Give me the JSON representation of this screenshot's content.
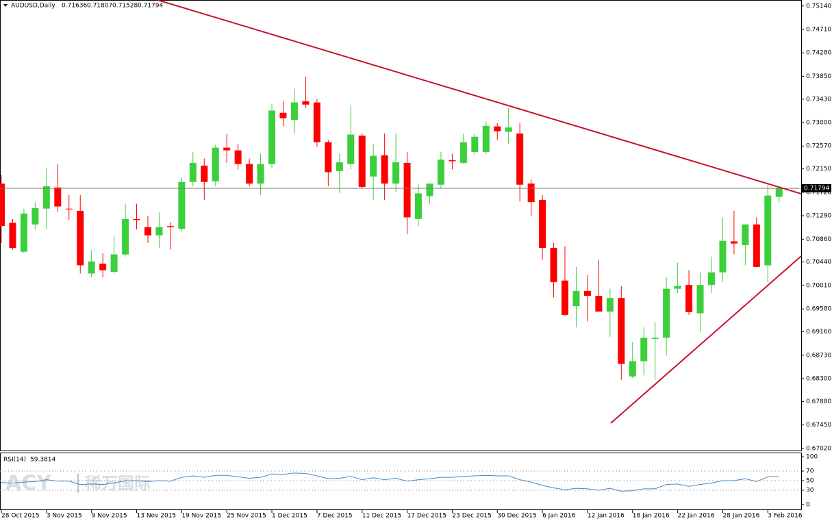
{
  "chart_data": [
    {
      "type": "candlestick",
      "title": "AUDUSD,Daily",
      "categories": [
        "28 Oct 2015",
        null,
        null,
        null,
        "3 Nov 2015",
        null,
        null,
        null,
        "9 Nov 2015",
        null,
        null,
        null,
        "13 Nov 2015",
        null,
        null,
        null,
        "19 Nov 2015",
        null,
        null,
        null,
        "25 Nov 2015",
        null,
        null,
        null,
        "1 Dec 2015",
        null,
        null,
        null,
        "7 Dec 2015",
        null,
        null,
        null,
        "11 Dec 2015",
        null,
        null,
        null,
        "17 Dec 2015",
        null,
        null,
        null,
        "23 Dec 2015",
        null,
        null,
        null,
        "30 Dec 2015",
        null,
        null,
        null,
        "6 Jan 2016",
        null,
        null,
        null,
        "12 Jan 2016",
        null,
        null,
        null,
        "18 Jan 2016",
        null,
        null,
        null,
        "22 Jan 2016",
        null,
        null,
        null,
        "28 Jan 2016",
        null,
        null,
        null,
        "3 Feb 2016",
        null
      ],
      "open": [
        0.7188,
        0.7116,
        0.7063,
        0.7113,
        0.7142,
        0.7181,
        0.7142,
        0.7138,
        0.7023,
        0.7041,
        0.7026,
        0.7058,
        0.7123,
        0.7108,
        0.7093,
        0.711,
        0.7105,
        0.7191,
        0.7221,
        0.7192,
        0.7254,
        0.7249,
        0.7224,
        0.7188,
        0.7224,
        0.7318,
        0.7305,
        0.7339,
        0.7337,
        0.7264,
        0.7211,
        0.7224,
        0.7276,
        0.7201,
        0.724,
        0.7188,
        0.7226,
        0.7123,
        0.7165,
        0.7186,
        0.7231,
        0.7226,
        0.7246,
        0.7246,
        0.7293,
        0.7283,
        0.728,
        0.7188,
        0.7158,
        0.707,
        0.701,
        0.6963,
        0.6991,
        0.6982,
        0.6953,
        0.6978,
        0.6834,
        0.6862,
        0.6903,
        0.6905,
        0.6995,
        0.7002,
        0.695,
        0.7002,
        0.7025,
        0.7082,
        0.7075,
        0.7113,
        0.7038,
        0.71636
      ],
      "high": [
        0.7204,
        0.7123,
        0.7142,
        0.7154,
        0.7217,
        0.7224,
        0.7167,
        0.7167,
        0.7066,
        0.706,
        0.7092,
        0.7151,
        0.7151,
        0.7129,
        0.7135,
        0.7117,
        0.7199,
        0.7246,
        0.7234,
        0.7259,
        0.7279,
        0.7261,
        0.7234,
        0.7243,
        0.7334,
        0.7339,
        0.7362,
        0.7384,
        0.7343,
        0.7268,
        0.7243,
        0.7333,
        0.728,
        0.7261,
        0.728,
        0.728,
        0.7246,
        0.7188,
        0.7188,
        0.7246,
        0.7243,
        0.728,
        0.728,
        0.7302,
        0.7299,
        0.7327,
        0.7299,
        0.7196,
        0.7167,
        0.7079,
        0.7073,
        0.7035,
        0.702,
        0.7048,
        0.6995,
        0.7,
        0.6897,
        0.6924,
        0.6934,
        0.7016,
        0.7043,
        0.7029,
        0.7026,
        0.7054,
        0.7126,
        0.7138,
        0.7113,
        0.7126,
        0.7186,
        0.71807
      ],
      "low": [
        0.7079,
        0.7067,
        0.706,
        0.7104,
        0.7104,
        0.7136,
        0.7121,
        0.7023,
        0.7016,
        0.7016,
        0.7023,
        0.7054,
        0.7104,
        0.7079,
        0.707,
        0.7067,
        0.71,
        0.7183,
        0.7158,
        0.7183,
        0.7226,
        0.7214,
        0.7183,
        0.7167,
        0.7217,
        0.7293,
        0.728,
        0.7327,
        0.7255,
        0.7183,
        0.7171,
        0.7214,
        0.718,
        0.7158,
        0.7158,
        0.7173,
        0.7095,
        0.711,
        0.7151,
        0.718,
        0.7214,
        0.7224,
        0.7241,
        0.7242,
        0.7268,
        0.7261,
        0.7155,
        0.7129,
        0.7048,
        0.6979,
        0.6945,
        0.6924,
        0.6935,
        0.6953,
        0.6907,
        0.6828,
        0.6831,
        0.6836,
        0.6828,
        0.6872,
        0.6987,
        0.6947,
        0.6916,
        0.6987,
        0.7007,
        0.7058,
        0.7038,
        0.7035,
        0.7007,
        0.71528
      ],
      "close": [
        0.711,
        0.707,
        0.7133,
        0.7143,
        0.7183,
        0.7146,
        0.7141,
        0.7038,
        0.7045,
        0.7029,
        0.7058,
        0.7123,
        0.7121,
        0.7093,
        0.7108,
        0.7108,
        0.7191,
        0.7226,
        0.7191,
        0.7254,
        0.7249,
        0.7224,
        0.7188,
        0.7224,
        0.7322,
        0.7308,
        0.7337,
        0.7333,
        0.7264,
        0.7209,
        0.7227,
        0.7278,
        0.7182,
        0.7239,
        0.7188,
        0.7227,
        0.7126,
        0.717,
        0.7188,
        0.7232,
        0.7229,
        0.7264,
        0.7274,
        0.7294,
        0.7284,
        0.7291,
        0.7186,
        0.7154,
        0.707,
        0.7007,
        0.6947,
        0.6991,
        0.6982,
        0.6953,
        0.6978,
        0.6857,
        0.6862,
        0.6905,
        0.6905,
        0.6995,
        0.7,
        0.6952,
        0.7002,
        0.7025,
        0.7083,
        0.7078,
        0.7113,
        0.7035,
        0.7166,
        0.71794
      ],
      "up_color": "#3ccf3c",
      "down_color": "#ff0000",
      "ylim": [
        0.6698,
        0.7525
      ],
      "yticks": [
        {
          "value": 0.7514,
          "label": "0.75140"
        },
        {
          "value": 0.7471,
          "label": "0.74710"
        },
        {
          "value": 0.7428,
          "label": "0.74280"
        },
        {
          "value": 0.7385,
          "label": "0.73850"
        },
        {
          "value": 0.7343,
          "label": "0.73430"
        },
        {
          "value": 0.73,
          "label": "0.73000"
        },
        {
          "value": 0.7257,
          "label": "0.72570"
        },
        {
          "value": 0.7215,
          "label": "0.72150"
        },
        {
          "value": 0.7172,
          "label": "0.71720"
        },
        {
          "value": 0.7129,
          "label": "0.71290"
        },
        {
          "value": 0.7086,
          "label": "0.70860"
        },
        {
          "value": 0.7044,
          "label": "0.70440"
        },
        {
          "value": 0.7001,
          "label": "0.70010"
        },
        {
          "value": 0.6958,
          "label": "0.69580"
        },
        {
          "value": 0.6916,
          "label": "0.69160"
        },
        {
          "value": 0.6873,
          "label": "0.68730"
        },
        {
          "value": 0.683,
          "label": "0.68300"
        },
        {
          "value": 0.6788,
          "label": "0.67880"
        },
        {
          "value": 0.6745,
          "label": "0.67450"
        },
        {
          "value": 0.6702,
          "label": "0.67020"
        }
      ],
      "watermark": [
        "ACY",
        "稀万国际"
      ]
    },
    {
      "type": "line",
      "title": "RSI(14)",
      "color": "#4a86c0",
      "values": [
        46,
        45,
        47,
        48,
        52,
        49,
        49,
        42,
        43,
        42,
        45,
        50,
        50,
        48,
        50,
        49,
        57,
        60,
        57,
        61,
        61,
        58,
        55,
        57,
        64,
        63,
        66,
        65,
        60,
        54,
        55,
        59,
        52,
        56,
        52,
        55,
        49,
        52,
        54,
        57,
        57,
        59,
        60,
        61,
        60,
        60,
        52,
        47,
        40,
        35,
        31,
        34,
        33,
        30,
        34,
        28,
        29,
        33,
        33,
        42,
        43,
        38,
        42,
        45,
        50,
        50,
        54,
        48,
        58,
        59.3814
      ],
      "ylim": [
        -11.6,
        108.7
      ],
      "yticks": [
        100,
        70,
        50,
        30,
        0
      ],
      "levels": [
        70,
        50,
        30
      ]
    }
  ]
}
